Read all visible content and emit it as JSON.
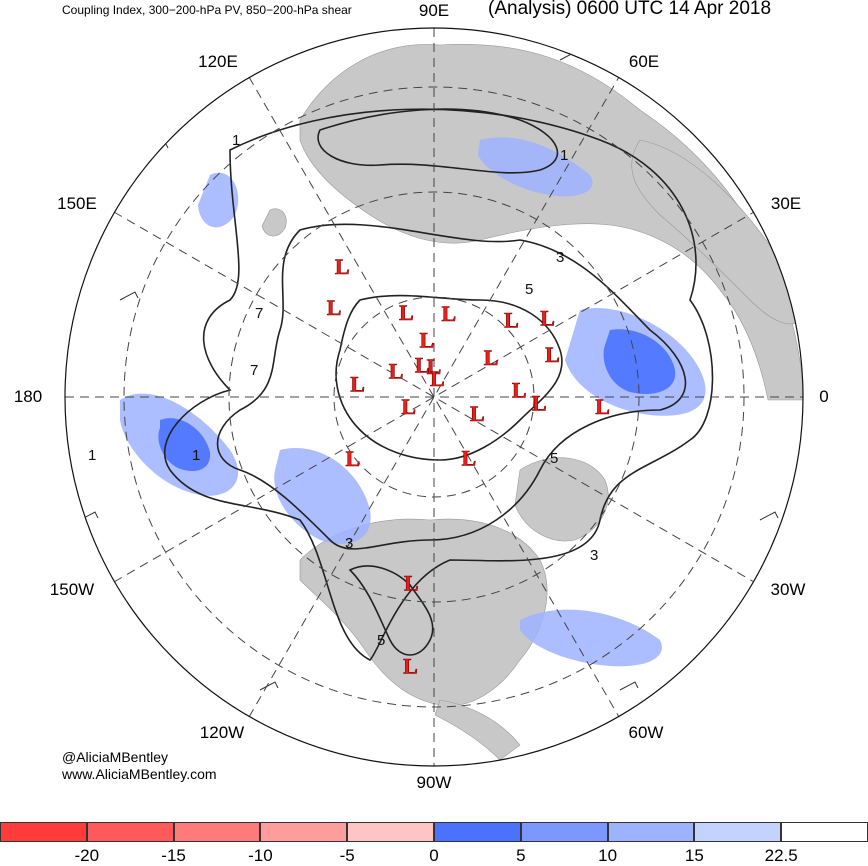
{
  "header": {
    "left_title": "Coupling Index, 300−200-hPa PV, 850−200-hPa shear",
    "right_title": "(Analysis) 0600 UTC 14 Apr 2018"
  },
  "credits": {
    "handle": "@AliciaMBentley",
    "url": "www.AliciaMBentley.com"
  },
  "longitude_labels": {
    "e90": "90E",
    "e60": "60E",
    "e30": "30E",
    "zero": "0",
    "w30": "30W",
    "w60": "60W",
    "w90": "90W",
    "w120": "120W",
    "w150": "150W",
    "e180": "180",
    "e150": "150E",
    "e120": "120E"
  },
  "low_marker_label": "L",
  "low_markers": [
    {
      "lon": 45,
      "lat": 62
    },
    {
      "lon": 35,
      "lat": 55
    },
    {
      "lon": 20,
      "lat": 58
    },
    {
      "lon": 35,
      "lat": 72
    },
    {
      "lon": -3,
      "lat": 48
    },
    {
      "lon": 5,
      "lat": 68
    },
    {
      "lon": 125,
      "lat": 50
    },
    {
      "lon": 138,
      "lat": 56
    },
    {
      "lon": 108,
      "lat": 67
    },
    {
      "lon": 80,
      "lat": 68
    },
    {
      "lon": 97,
      "lat": 75
    },
    {
      "lon": 145,
      "lat": 78
    },
    {
      "lon": 110,
      "lat": 81
    },
    {
      "lon": 90,
      "lat": 82
    },
    {
      "lon": 80,
      "lat": 85
    },
    {
      "lon": 170,
      "lat": 70
    },
    {
      "lon": -160,
      "lat": 83
    },
    {
      "lon": -3,
      "lat": 63
    },
    {
      "lon": -20,
      "lat": 78
    },
    {
      "lon": -143,
      "lat": 64
    },
    {
      "lon": -60,
      "lat": 72
    },
    {
      "lon": -97,
      "lat": 44
    },
    {
      "lon": -95,
      "lat": 27
    }
  ],
  "contour_labels": [
    "1",
    "1",
    "1",
    "1",
    "3",
    "3",
    "3",
    "5",
    "5",
    "5",
    "7",
    "7"
  ],
  "colorbar": {
    "colors": [
      "#ff3b3b",
      "#ff5a5a",
      "#ff7a7a",
      "#ff9c9c",
      "#ffc4c4",
      "#4a72ff",
      "#7c98ff",
      "#9db3ff",
      "#c4d2ff",
      "#ffffff"
    ],
    "ticks": [
      "-20",
      "-15",
      "-10",
      "-5",
      "0",
      "5",
      "10",
      "15",
      "22.5"
    ]
  }
}
